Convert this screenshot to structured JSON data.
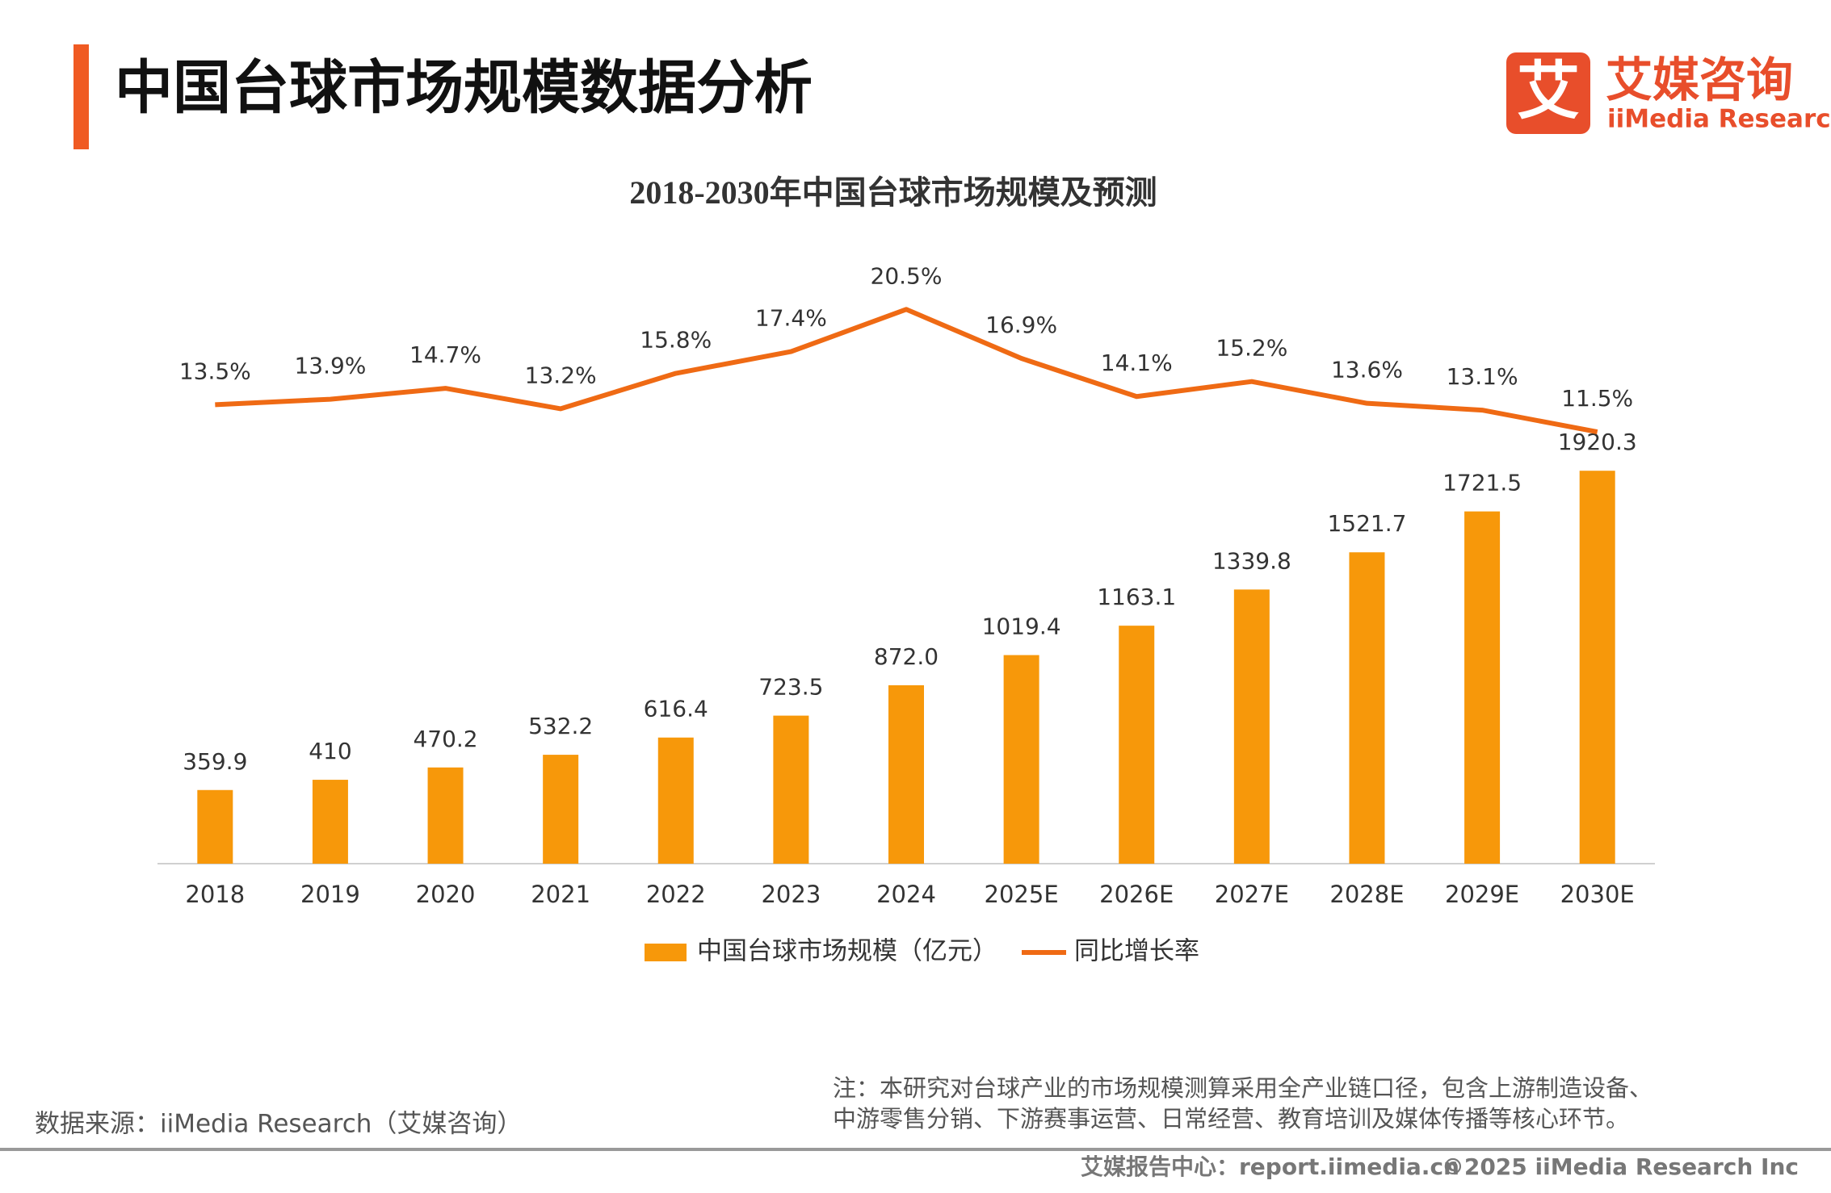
{
  "header": {
    "title": "中国台球市场规模数据分析",
    "logo_char": "艾",
    "logo_name": "艾媒咨询",
    "logo_sub": "iiMedia Research"
  },
  "chart_data": {
    "type": "bar_line",
    "title": "2018-2030年中国台球市场规模及预测",
    "categories": [
      "2018",
      "2019",
      "2020",
      "2021",
      "2022",
      "2023",
      "2024",
      "2025E",
      "2026E",
      "2027E",
      "2028E",
      "2029E",
      "2030E"
    ],
    "series": [
      {
        "name": "中国台球市场规模（亿元）",
        "type": "bar",
        "color": "#f7980a",
        "values": [
          359.9,
          410,
          470.2,
          532.2,
          616.4,
          723.5,
          872.0,
          1019.4,
          1163.1,
          1339.8,
          1521.7,
          1721.5,
          1920.3
        ],
        "value_labels": [
          "359.9",
          "410",
          "470.2",
          "532.2",
          "616.4",
          "723.5",
          "872.0",
          "1019.4",
          "1163.1",
          "1339.8",
          "1521.7",
          "1721.5",
          "1920.3"
        ]
      },
      {
        "name": "同比增长率",
        "type": "line",
        "axis": "y2",
        "color": "#ef6a14",
        "values": [
          13.5,
          13.9,
          14.7,
          13.2,
          15.8,
          17.4,
          20.5,
          16.9,
          14.1,
          15.2,
          13.6,
          13.1,
          11.5
        ],
        "value_labels": [
          "13.5%",
          "13.9%",
          "14.7%",
          "13.2%",
          "15.8%",
          "17.4%",
          "20.5%",
          "16.9%",
          "14.1%",
          "15.2%",
          "13.6%",
          "13.1%",
          "11.5%"
        ]
      }
    ],
    "ylim": [
      0,
      2000
    ],
    "y2lim": [
      0,
      22
    ],
    "legend": "bottom"
  },
  "source": "数据来源：iiMedia Research（艾媒咨询）",
  "note": [
    "注：本研究对台球产业的市场规模测算采用全产业链口径，包含上游制造设备、",
    "中游零售分销、下游赛事运营、日常经营、教育培训及媒体传播等核心环节。"
  ],
  "footer": {
    "left": "艾媒报告中心：report.iimedia.cn",
    "right": "©2025  iiMedia Research  Inc"
  }
}
